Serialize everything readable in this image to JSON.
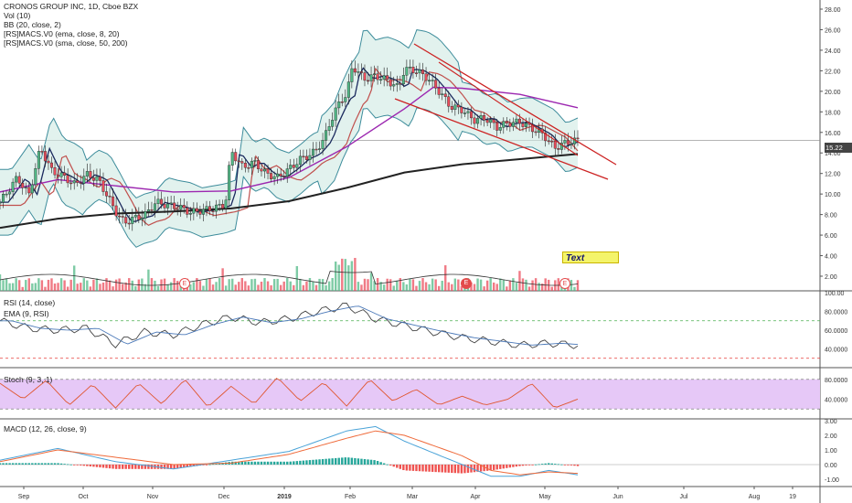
{
  "legend": {
    "title": "CRONOS GROUP INC, 1D, Cboe BZX",
    "vol": "Vol (10)",
    "bb": "BB (20, close, 2)",
    "ema": "[RS]MACS.V0 (ema, close, 8, 20)",
    "sma": "[RS]MACS.V0 (sma, close, 50, 200)"
  },
  "rsi_label": "RSI (14, close)",
  "ema_rsi_label": "EMA (9, RSI)",
  "stoch_label": "Stoch (9, 3, 1)",
  "macd_label": "MACD (12, 26, close, 9)",
  "last_price": "15.22",
  "text_note": "Text",
  "earnings_marker": "E",
  "price_axis": [
    "28.00",
    "26.00",
    "24.00",
    "22.00",
    "20.00",
    "18.00",
    "16.00",
    "14.00",
    "12.00",
    "10.00",
    "8.00",
    "6.00",
    "4.00",
    "2.00"
  ],
  "rsi_axis": [
    "100.00",
    "80.0000",
    "60.0000",
    "40.0000"
  ],
  "stoch_axis": [
    "80.0000",
    "40.0000"
  ],
  "macd_axis": [
    "3.00",
    "2.00",
    "1.00",
    "0.00",
    "-1.00"
  ],
  "time_axis": [
    "Sep",
    "Oct",
    "Nov",
    "Dec",
    "2019",
    "Feb",
    "Mar",
    "Apr",
    "May",
    "Jun",
    "Jul",
    "Aug",
    "19"
  ],
  "colors": {
    "up": "#53b987",
    "down": "#eb4d5c",
    "bb": "#3d8c9b",
    "bb_fill": "#cfe9e2",
    "ema_fast": "#1b2a5e",
    "ema_slow": "#c0504d",
    "sma50": "#9c27b0",
    "sma200": "#222222",
    "channel": "#cc2222",
    "rsi": "#444444",
    "rsi_ema": "#4a78b8",
    "stoch": "#e0562f",
    "stoch_band": "#e6c8f7",
    "macd": "#4aa3d8",
    "signal": "#ef6a3a"
  },
  "chart_data": {
    "type": "candlestick",
    "symbol": "CRONOS GROUP INC",
    "interval": "1D",
    "exchange": "Cboe BZX",
    "ylim": [
      2,
      28
    ],
    "last_close": 15.22,
    "price_path": [
      [
        0,
        9.2
      ],
      [
        0.03,
        11.6
      ],
      [
        0.05,
        9.9
      ],
      [
        0.07,
        14.5
      ],
      [
        0.09,
        12.2
      ],
      [
        0.11,
        11.7
      ],
      [
        0.13,
        10.9
      ],
      [
        0.15,
        11.9
      ],
      [
        0.17,
        11.4
      ],
      [
        0.19,
        9.4
      ],
      [
        0.2,
        8.3
      ],
      [
        0.215,
        7.2
      ],
      [
        0.23,
        7.6
      ],
      [
        0.25,
        7.9
      ],
      [
        0.27,
        9.2
      ],
      [
        0.29,
        8.9
      ],
      [
        0.31,
        8.7
      ],
      [
        0.33,
        8.2
      ],
      [
        0.35,
        8.4
      ],
      [
        0.37,
        8.6
      ],
      [
        0.39,
        9.0
      ],
      [
        0.4,
        14.2
      ],
      [
        0.42,
        12.6
      ],
      [
        0.44,
        13.1
      ],
      [
        0.46,
        12.0
      ],
      [
        0.48,
        11.6
      ],
      [
        0.5,
        12.4
      ],
      [
        0.52,
        13.4
      ],
      [
        0.54,
        13.9
      ],
      [
        0.56,
        15.2
      ],
      [
        0.57,
        16.8
      ],
      [
        0.59,
        19.2
      ],
      [
        0.6,
        19.6
      ],
      [
        0.61,
        22.5
      ],
      [
        0.63,
        21.2
      ],
      [
        0.65,
        21.5
      ],
      [
        0.67,
        21.1
      ],
      [
        0.69,
        20.3
      ],
      [
        0.7,
        22.2
      ],
      [
        0.72,
        22.0
      ],
      [
        0.74,
        21.3
      ],
      [
        0.76,
        20.0
      ],
      [
        0.78,
        18.5
      ],
      [
        0.8,
        18.2
      ],
      [
        0.82,
        17.2
      ],
      [
        0.84,
        17.4
      ],
      [
        0.86,
        16.5
      ],
      [
        0.88,
        16.9
      ],
      [
        0.9,
        17.0
      ],
      [
        0.92,
        16.4
      ],
      [
        0.94,
        15.8
      ],
      [
        0.96,
        14.5
      ],
      [
        0.98,
        15.0
      ],
      [
        1,
        15.22
      ]
    ],
    "sma200_path": [
      [
        0,
        6.7
      ],
      [
        0.1,
        7.6
      ],
      [
        0.2,
        8.1
      ],
      [
        0.3,
        8.3
      ],
      [
        0.4,
        8.6
      ],
      [
        0.5,
        9.3
      ],
      [
        0.6,
        10.6
      ],
      [
        0.7,
        12.1
      ],
      [
        0.8,
        12.9
      ],
      [
        0.9,
        13.4
      ],
      [
        1,
        13.9
      ]
    ],
    "sma50_path": [
      [
        0,
        10.2
      ],
      [
        0.1,
        11.4
      ],
      [
        0.2,
        10.8
      ],
      [
        0.3,
        10.2
      ],
      [
        0.4,
        10.3
      ],
      [
        0.5,
        11.6
      ],
      [
        0.6,
        14.6
      ],
      [
        0.7,
        18.3
      ],
      [
        0.75,
        20.4
      ],
      [
        0.8,
        20.3
      ],
      [
        0.9,
        19.7
      ],
      [
        1,
        18.4
      ]
    ],
    "rsi": {
      "ylim": [
        20,
        100
      ],
      "levels": [
        70,
        30
      ],
      "path": [
        [
          0,
          70
        ],
        [
          0.05,
          62
        ],
        [
          0.1,
          60
        ],
        [
          0.15,
          62
        ],
        [
          0.2,
          45
        ],
        [
          0.25,
          58
        ],
        [
          0.3,
          55
        ],
        [
          0.35,
          66
        ],
        [
          0.4,
          74
        ],
        [
          0.45,
          68
        ],
        [
          0.5,
          72
        ],
        [
          0.55,
          80
        ],
        [
          0.6,
          86
        ],
        [
          0.65,
          72
        ],
        [
          0.7,
          65
        ],
        [
          0.75,
          58
        ],
        [
          0.8,
          52
        ],
        [
          0.85,
          48
        ],
        [
          0.9,
          44
        ],
        [
          0.95,
          46
        ],
        [
          1,
          44
        ]
      ]
    },
    "stoch": {
      "ylim": [
        0,
        100
      ],
      "levels": [
        80,
        20
      ],
      "path": [
        [
          0,
          72
        ],
        [
          0.04,
          40
        ],
        [
          0.08,
          78
        ],
        [
          0.12,
          28
        ],
        [
          0.16,
          70
        ],
        [
          0.2,
          22
        ],
        [
          0.24,
          72
        ],
        [
          0.28,
          30
        ],
        [
          0.32,
          80
        ],
        [
          0.36,
          24
        ],
        [
          0.4,
          66
        ],
        [
          0.44,
          30
        ],
        [
          0.48,
          84
        ],
        [
          0.52,
          36
        ],
        [
          0.56,
          74
        ],
        [
          0.6,
          26
        ],
        [
          0.64,
          80
        ],
        [
          0.68,
          36
        ],
        [
          0.72,
          60
        ],
        [
          0.76,
          28
        ],
        [
          0.8,
          46
        ],
        [
          0.84,
          28
        ],
        [
          0.88,
          40
        ],
        [
          0.92,
          72
        ],
        [
          0.96,
          22
        ],
        [
          1,
          40
        ]
      ]
    },
    "macd": {
      "ylim": [
        -1.5,
        3
      ],
      "line": [
        [
          0,
          0.3
        ],
        [
          0.1,
          1.1
        ],
        [
          0.2,
          0.2
        ],
        [
          0.3,
          -0.3
        ],
        [
          0.4,
          0.3
        ],
        [
          0.5,
          0.9
        ],
        [
          0.6,
          2.3
        ],
        [
          0.65,
          2.6
        ],
        [
          0.7,
          1.6
        ],
        [
          0.8,
          0
        ],
        [
          0.85,
          -0.8
        ],
        [
          0.9,
          -0.8
        ],
        [
          0.95,
          -0.4
        ],
        [
          1,
          -0.7
        ]
      ],
      "signal": [
        [
          0,
          0.2
        ],
        [
          0.1,
          1.0
        ],
        [
          0.2,
          0.5
        ],
        [
          0.3,
          0
        ],
        [
          0.4,
          0.1
        ],
        [
          0.5,
          0.7
        ],
        [
          0.6,
          1.8
        ],
        [
          0.65,
          2.3
        ],
        [
          0.7,
          2.0
        ],
        [
          0.8,
          0.6
        ],
        [
          0.85,
          -0.4
        ],
        [
          0.9,
          -0.7
        ],
        [
          0.95,
          -0.5
        ],
        [
          1,
          -0.6
        ]
      ]
    }
  }
}
